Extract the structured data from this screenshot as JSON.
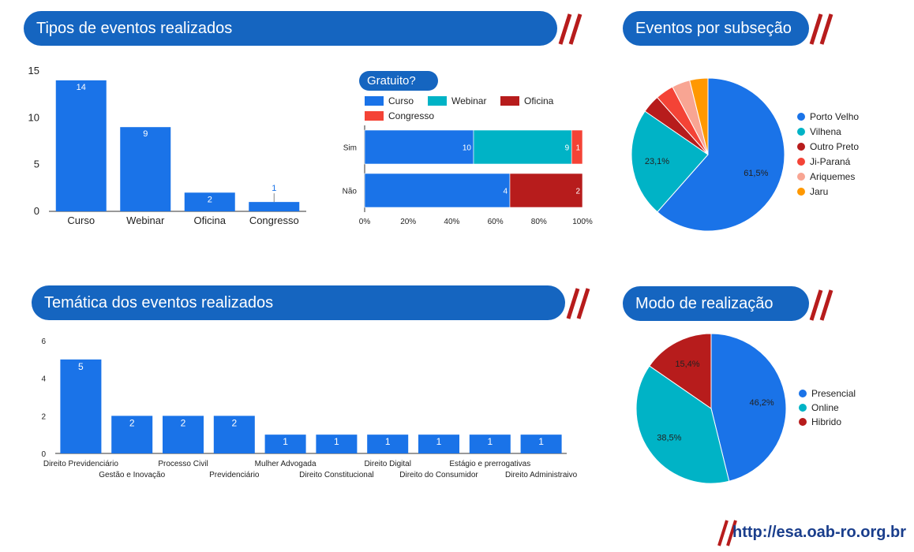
{
  "headers": {
    "tipos": "Tipos de eventos realizados",
    "subsecao": "Eventos por subseção",
    "tematica": "Temática dos eventos realizados",
    "modo": "Modo de realização"
  },
  "gratuito_label": "Gratuito?",
  "footer_url": "http://esa.oab-ro.org.br",
  "colors": {
    "header_bg": "#1565c0",
    "slash": "#b71c1c",
    "bar_blue": "#1a73e8",
    "teal": "#00b3c6",
    "dark_red": "#b71c1c",
    "red": "#f44336",
    "salmon": "#f8a593",
    "orange": "#ff9800"
  },
  "chart_data": [
    {
      "id": "tipos",
      "type": "bar",
      "categories": [
        "Curso",
        "Webinar",
        "Oficina",
        "Congresso"
      ],
      "values": [
        14,
        9,
        2,
        1
      ],
      "ylim": [
        0,
        15
      ],
      "yticks": [
        0,
        5,
        10,
        15
      ],
      "xlabel": "",
      "ylabel": ""
    },
    {
      "id": "gratuito",
      "type": "bar",
      "orientation": "horizontal-stacked-percent",
      "categories": [
        "Sim",
        "Não"
      ],
      "series": [
        {
          "name": "Curso",
          "values": [
            10,
            4
          ]
        },
        {
          "name": "Webinar",
          "values": [
            9,
            0
          ]
        },
        {
          "name": "Oficina",
          "values": [
            0,
            2
          ]
        },
        {
          "name": "Congresso",
          "values": [
            1,
            0
          ]
        }
      ],
      "xticks": [
        "0%",
        "20%",
        "40%",
        "60%",
        "80%",
        "100%"
      ],
      "legend": "top"
    },
    {
      "id": "subsecao",
      "type": "pie",
      "labels": [
        "Porto Velho",
        "Vilhena",
        "Outro Preto",
        "Ji-Paraná",
        "Ariquemes",
        "Jaru"
      ],
      "values": [
        61.5,
        23.1,
        3.85,
        3.85,
        3.85,
        3.85
      ],
      "value_labels": [
        "61,5%",
        "23,1%",
        "",
        "",
        "",
        ""
      ],
      "legend": "right"
    },
    {
      "id": "tematica",
      "type": "bar",
      "categories": [
        "Direito Previdenciário",
        "Gestão e Inovação",
        "Processo Civil",
        "Previdenciário",
        "Mulher Advogada",
        "Direito Constitucional",
        "Direito Digital",
        "Direito do Consumidor",
        "Estágio e prerrogativas",
        "Direito Administraivo"
      ],
      "values": [
        5,
        2,
        2,
        2,
        1,
        1,
        1,
        1,
        1,
        1
      ],
      "ylim": [
        0,
        6
      ],
      "yticks": [
        0,
        2,
        4,
        6
      ],
      "xlabel": "",
      "ylabel": ""
    },
    {
      "id": "modo",
      "type": "pie",
      "labels": [
        "Presencial",
        "Online",
        "Hibrido"
      ],
      "values": [
        46.2,
        38.5,
        15.4
      ],
      "value_labels": [
        "46,2%",
        "38,5%",
        "15,4%"
      ],
      "legend": "right"
    }
  ]
}
